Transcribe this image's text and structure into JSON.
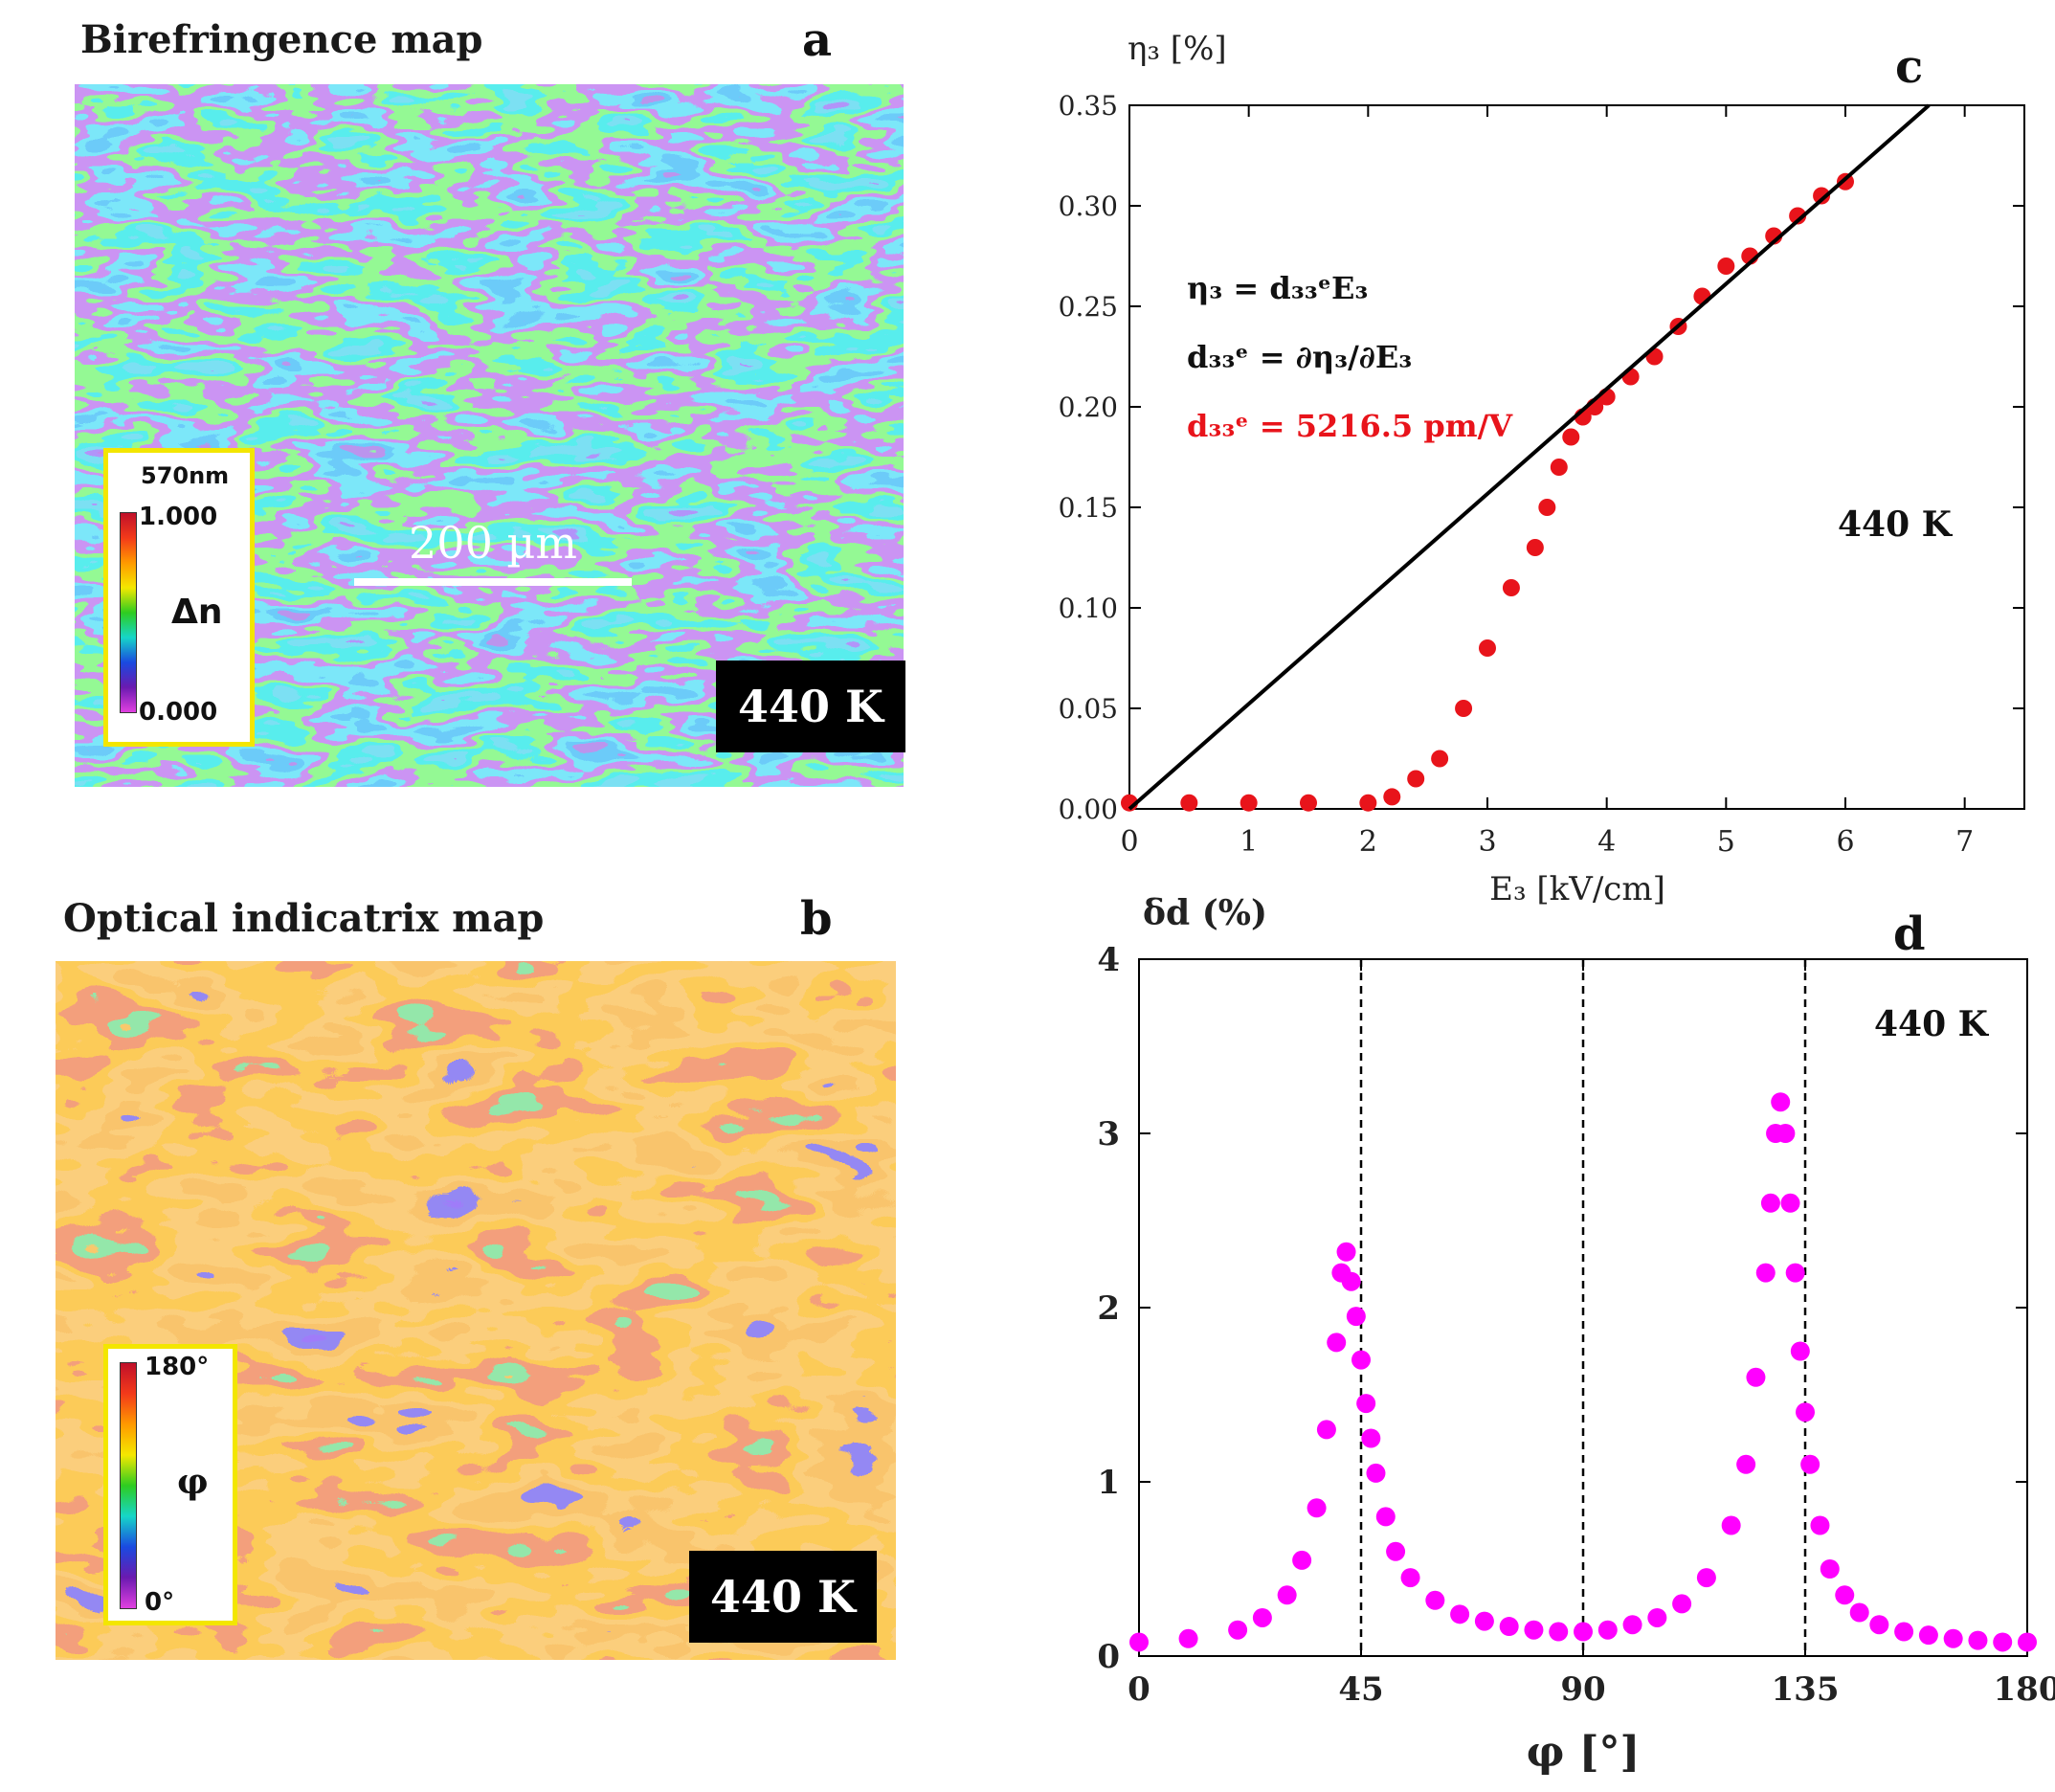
{
  "panel_a": {
    "title": "Birefringence map",
    "letter": "a",
    "temp_label": "440 K",
    "scalebar_label": "200 µm",
    "colorbar": {
      "wavelength": "570nm",
      "max": "1.000",
      "min": "0.000",
      "quantity": "Δn"
    }
  },
  "panel_b": {
    "title": "Optical indicatrix map",
    "letter": "b",
    "temp_label": "440 K",
    "colorbar": {
      "max": "180°",
      "min": "0°",
      "quantity": "φ"
    }
  },
  "panel_c": {
    "letter": "c",
    "temp_label": "440 K",
    "eq1": "η₃ = d₃₃ᵉE₃",
    "eq2": "d₃₃ᵉ = ∂η₃/∂E₃",
    "eq3": "d₃₃ᵉ = 5216.5 pm/V",
    "ylabel": "η₃ [%]",
    "xlabel": "E₃ [kV/cm]",
    "xticks": [
      "0",
      "1",
      "2",
      "3",
      "4",
      "5",
      "6",
      "7"
    ],
    "yticks": [
      "0.00",
      "0.05",
      "0.10",
      "0.15",
      "0.20",
      "0.25",
      "0.30",
      "0.35"
    ]
  },
  "panel_d": {
    "letter": "d",
    "temp_label": "440 K",
    "ylabel": "δd (%)",
    "xlabel": "φ [°]",
    "xticks": [
      "0",
      "45",
      "90",
      "135",
      "180"
    ],
    "yticks": [
      "0",
      "1",
      "2",
      "3",
      "4"
    ]
  },
  "chart_data": [
    {
      "type": "scatter",
      "title": "",
      "xlabel": "E₃ [kV/cm]",
      "ylabel": "η₃ [%]",
      "xlim": [
        0,
        7.5
      ],
      "ylim": [
        0,
        0.35
      ],
      "series": [
        {
          "name": "measured",
          "color": "#e8141b",
          "x": [
            0.0,
            0.5,
            1.0,
            1.5,
            2.0,
            2.2,
            2.4,
            2.6,
            2.8,
            3.0,
            3.2,
            3.4,
            3.5,
            3.6,
            3.7,
            3.8,
            3.9,
            4.0,
            4.2,
            4.4,
            4.6,
            4.8,
            5.0,
            5.2,
            5.4,
            5.6,
            5.8,
            6.0
          ],
          "y": [
            0.003,
            0.003,
            0.003,
            0.003,
            0.003,
            0.006,
            0.015,
            0.025,
            0.05,
            0.08,
            0.11,
            0.13,
            0.15,
            0.17,
            0.185,
            0.195,
            0.2,
            0.205,
            0.215,
            0.225,
            0.24,
            0.255,
            0.27,
            0.275,
            0.285,
            0.295,
            0.305,
            0.312
          ]
        },
        {
          "name": "linear fit",
          "color": "#000000",
          "type": "line",
          "x": [
            0.0,
            6.7
          ],
          "y": [
            0.0,
            0.35
          ]
        }
      ],
      "annotations": [
        "η₃ = d₃₃ᵉE₃",
        "d₃₃ᵉ = ∂η₃/∂E₃",
        "d₃₃ᵉ = 5216.5 pm/V",
        "440 K"
      ]
    },
    {
      "type": "scatter",
      "title": "",
      "xlabel": "φ [°]",
      "ylabel": "δd (%)",
      "xlim": [
        0,
        180
      ],
      "ylim": [
        0,
        4
      ],
      "vlines": [
        45,
        90,
        135
      ],
      "series": [
        {
          "name": "δd",
          "color": "#ff00ff",
          "x": [
            0,
            10,
            20,
            25,
            30,
            33,
            36,
            38,
            40,
            41,
            42,
            43,
            44,
            45,
            46,
            47,
            48,
            50,
            52,
            55,
            60,
            65,
            70,
            75,
            80,
            85,
            90,
            95,
            100,
            105,
            110,
            115,
            120,
            123,
            125,
            127,
            128,
            129,
            130,
            131,
            132,
            133,
            134,
            135,
            136,
            138,
            140,
            143,
            146,
            150,
            155,
            160,
            165,
            170,
            175,
            180
          ],
          "y": [
            0.08,
            0.1,
            0.15,
            0.22,
            0.35,
            0.55,
            0.85,
            1.3,
            1.8,
            2.2,
            2.32,
            2.15,
            1.95,
            1.7,
            1.45,
            1.25,
            1.05,
            0.8,
            0.6,
            0.45,
            0.32,
            0.24,
            0.2,
            0.17,
            0.15,
            0.14,
            0.14,
            0.15,
            0.18,
            0.22,
            0.3,
            0.45,
            0.75,
            1.1,
            1.6,
            2.2,
            2.6,
            3.0,
            3.18,
            3.0,
            2.6,
            2.2,
            1.75,
            1.4,
            1.1,
            0.75,
            0.5,
            0.35,
            0.25,
            0.18,
            0.14,
            0.12,
            0.1,
            0.09,
            0.08,
            0.08
          ]
        }
      ],
      "annotations": [
        "440 K"
      ]
    }
  ]
}
